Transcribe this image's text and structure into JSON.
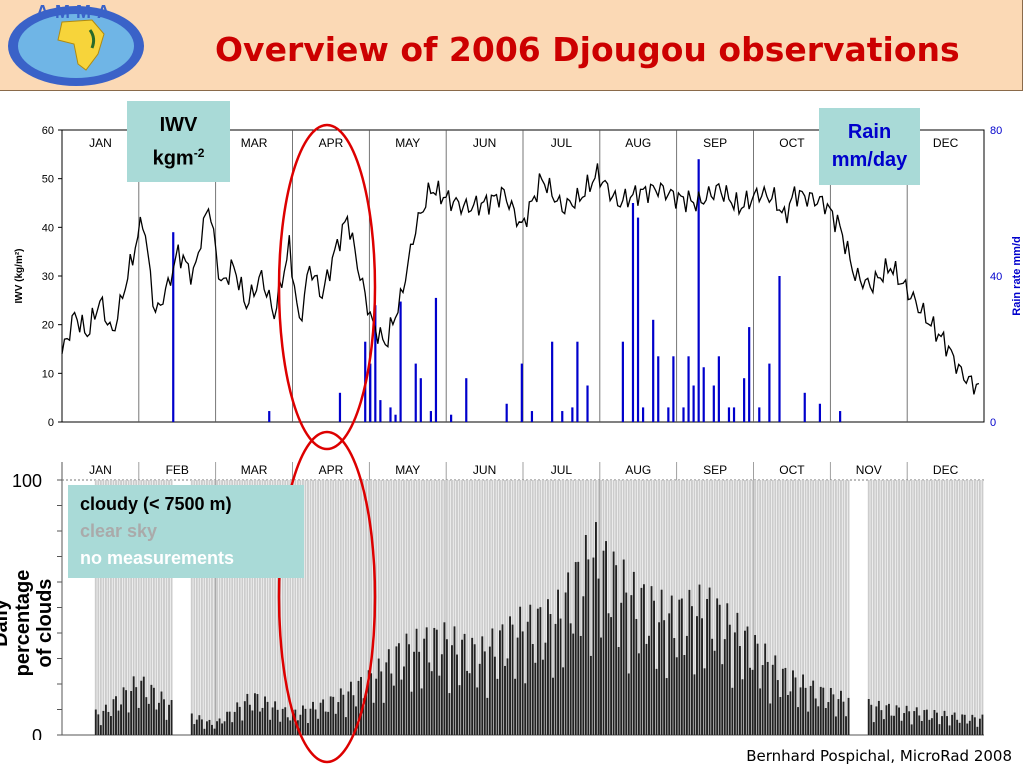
{
  "header": {
    "title": "Overview of 2006 Djougou observations",
    "logo_text": "AMMA"
  },
  "footer": {
    "credit": "Bernhard Pospichal, MicroRad 2008"
  },
  "annotations": {
    "iwv_label_line1": "IWV",
    "iwv_label_line2": "kgm",
    "iwv_label_sup": "-2",
    "rain_label_line1": "Rain",
    "rain_label_line2": "mm/day",
    "legend": {
      "cloudy": "cloudy (< 7500 m)",
      "clear": "clear sky",
      "no_measurements": "no measurements"
    }
  },
  "colors": {
    "title": "#cc0000",
    "iwv_line": "#000000",
    "rain_bars": "#0000cc",
    "highlight_ellipse": "#dd0000",
    "cloudy_bars": "#222222",
    "clear_bars": "#cccccc"
  },
  "chart_data": [
    {
      "type": "line",
      "x_unit": "day of year 2006",
      "xlim": [
        0,
        365
      ],
      "month_labels": [
        "JAN",
        "FEB",
        "MAR",
        "APR",
        "MAY",
        "JUN",
        "JUL",
        "AUG",
        "SEP",
        "OCT",
        "NOV",
        "DEC"
      ],
      "ylabel": "IWV (kg/m²)",
      "ylim": [
        0,
        60
      ],
      "yticks": [
        0,
        10,
        20,
        30,
        40,
        50,
        60
      ],
      "y2label": "Rain rate mm/d",
      "y2lim": [
        0,
        80
      ],
      "y2ticks": [
        0,
        40,
        80
      ],
      "series": [
        {
          "name": "IWV",
          "x": [
            0,
            5,
            10,
            15,
            20,
            26,
            32,
            37,
            42,
            46,
            52,
            58,
            63,
            68,
            73,
            79,
            84,
            90,
            94,
            98,
            103,
            108,
            113,
            118,
            123,
            128,
            134,
            140,
            146,
            152,
            160,
            168,
            175,
            182,
            190,
            198,
            205,
            212,
            220,
            228,
            236,
            244,
            252,
            260,
            268,
            276,
            282,
            286,
            290,
            296,
            302,
            308,
            314,
            320,
            328,
            336,
            344,
            350,
            356,
            360,
            364
          ],
          "y": [
            14,
            22,
            18,
            25,
            18,
            30,
            42,
            22,
            28,
            35,
            30,
            45,
            28,
            32,
            24,
            30,
            22,
            36,
            20,
            32,
            26,
            35,
            42,
            30,
            20,
            16,
            25,
            40,
            48,
            46,
            44,
            45,
            47,
            40,
            50,
            44,
            46,
            51,
            45,
            47,
            48,
            46,
            45,
            48,
            44,
            47,
            46,
            42,
            47,
            46,
            45,
            40,
            30,
            28,
            32,
            26,
            20,
            16,
            10,
            8,
            7
          ]
        },
        {
          "name": "Rain",
          "axis": "y2",
          "x": [
            44,
            82,
            110,
            120,
            122,
            124,
            126,
            130,
            132,
            134,
            140,
            142,
            146,
            148,
            154,
            160,
            176,
            182,
            186,
            194,
            198,
            202,
            204,
            208,
            222,
            226,
            228,
            230,
            234,
            236,
            240,
            242,
            246,
            248,
            250,
            252,
            254,
            258,
            260,
            264,
            266,
            270,
            272,
            276,
            280,
            284,
            294,
            300,
            308
          ],
          "y": [
            52,
            3,
            8,
            22,
            16,
            32,
            6,
            4,
            2,
            33,
            16,
            12,
            3,
            34,
            2,
            12,
            5,
            16,
            3,
            22,
            3,
            4,
            22,
            10,
            22,
            60,
            56,
            4,
            28,
            18,
            4,
            18,
            4,
            18,
            10,
            72,
            15,
            10,
            18,
            4,
            4,
            12,
            26,
            4,
            16,
            40,
            8,
            5,
            3
          ]
        }
      ]
    },
    {
      "type": "bar",
      "x_unit": "day of year 2006",
      "xlim": [
        0,
        365
      ],
      "month_labels": [
        "JAN",
        "FEB",
        "MAR",
        "APR",
        "MAY",
        "JUN",
        "JUL",
        "AUG",
        "SEP",
        "OCT",
        "NOV",
        "DEC"
      ],
      "ylabel": "Daily percentage of clouds",
      "ylim": [
        0,
        100
      ],
      "yticks": [
        0,
        100
      ],
      "series": [
        {
          "name": "cloudy (< 7500 m)",
          "description": "Daily cloudy percentage; estimated envelope over the year",
          "x": [
            15,
            30,
            45,
            60,
            75,
            90,
            105,
            120,
            135,
            150,
            165,
            180,
            195,
            210,
            225,
            240,
            255,
            270,
            285,
            300,
            315,
            330,
            345,
            360
          ],
          "y": [
            10,
            25,
            12,
            5,
            18,
            10,
            15,
            25,
            40,
            45,
            38,
            50,
            55,
            85,
            65,
            55,
            60,
            45,
            28,
            20,
            15,
            12,
            10,
            8
          ]
        },
        {
          "name": "clear sky",
          "description": "Remainder to 100% on measured days",
          "value_when_measured": 100
        }
      ],
      "no_measurement_gaps": [
        [
          0,
          12
        ],
        [
          44,
          50
        ],
        [
          312,
          318
        ]
      ]
    }
  ]
}
